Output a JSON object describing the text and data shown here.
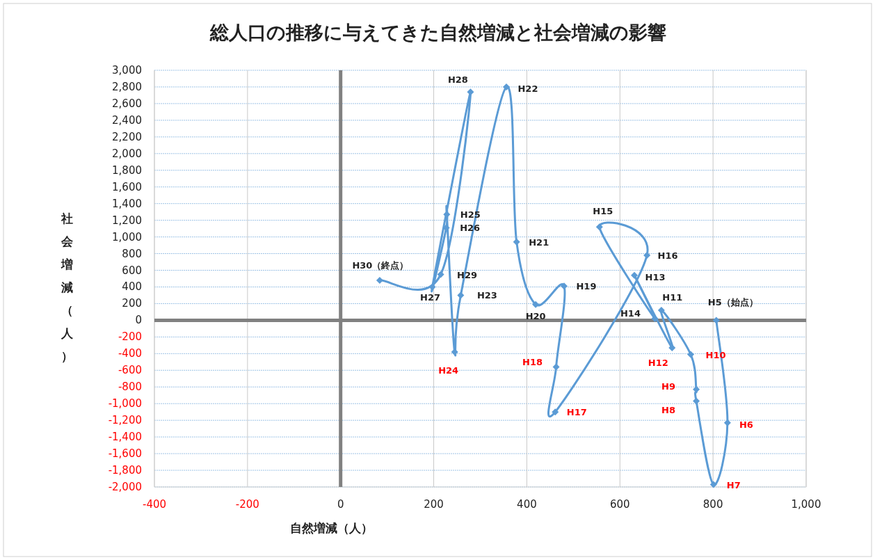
{
  "chart_data": {
    "type": "line",
    "title": "総人口の推移に与えてきた自然増減と社会増減の影響",
    "xlabel": "自然増減（人）",
    "ylabel": "社会増減（人）",
    "line_style": "solid",
    "marker": "diamond",
    "grid": true,
    "xlim": [
      -400,
      1000
    ],
    "ylim": [
      -2000,
      3000
    ],
    "xticks": [
      -400,
      -200,
      0,
      200,
      400,
      600,
      800,
      {
        "value": 1000,
        "label": "1,000"
      }
    ],
    "yticks": [
      {
        "value": -2000,
        "label": "-2,000"
      },
      {
        "value": -1800,
        "label": "-1,800"
      },
      {
        "value": -1600,
        "label": "-1,600"
      },
      {
        "value": -1400,
        "label": "-1,400"
      },
      {
        "value": -1200,
        "label": "-1,200"
      },
      {
        "value": -1000,
        "label": "-1,000"
      },
      -800,
      -600,
      -400,
      -200,
      0,
      200,
      400,
      600,
      800,
      {
        "value": 1000,
        "label": "1,000"
      },
      {
        "value": 1200,
        "label": "1,200"
      },
      {
        "value": 1400,
        "label": "1,400"
      },
      {
        "value": 1600,
        "label": "1,600"
      },
      {
        "value": 1800,
        "label": "1,800"
      },
      {
        "value": 2000,
        "label": "2,000"
      },
      {
        "value": 2200,
        "label": "2,200"
      },
      {
        "value": 2400,
        "label": "2,400"
      },
      {
        "value": 2600,
        "label": "2,600"
      },
      {
        "value": 2800,
        "label": "2,800"
      },
      {
        "value": 3000,
        "label": "3,000"
      }
    ],
    "series": [
      {
        "color": "#5b9bd5",
        "x": [
          807,
          831,
          801,
          764,
          764,
          752,
          689,
          712,
          631,
          675,
          556,
          658,
          461,
          463,
          480,
          419,
          378,
          356,
          258,
          245,
          228,
          227,
          197,
          279,
          215,
          84
        ],
        "values": [
          0,
          -1230,
          -1970,
          -970,
          -830,
          -410,
          120,
          -330,
          540,
          20,
          1120,
          780,
          -1100,
          -560,
          410,
          190,
          940,
          2800,
          300,
          -380,
          1270,
          1110,
          400,
          2740,
          550,
          480
        ]
      }
    ],
    "annotations": [
      {
        "text": "H5（始点）",
        "x": 807,
        "y": 0
      },
      {
        "text": "H6",
        "x": 831,
        "y": -1230
      },
      {
        "text": "H7",
        "x": 801,
        "y": -1970
      },
      {
        "text": "H8",
        "x": 764,
        "y": -970
      },
      {
        "text": "H9",
        "x": 764,
        "y": -830
      },
      {
        "text": "H10",
        "x": 752,
        "y": -410
      },
      {
        "text": "H11",
        "x": 689,
        "y": 120
      },
      {
        "text": "H12",
        "x": 712,
        "y": -330
      },
      {
        "text": "H13",
        "x": 631,
        "y": 540
      },
      {
        "text": "H14",
        "x": 675,
        "y": 20
      },
      {
        "text": "H15",
        "x": 556,
        "y": 1120
      },
      {
        "text": "H16",
        "x": 658,
        "y": 780
      },
      {
        "text": "H17",
        "x": 461,
        "y": -1100
      },
      {
        "text": "H18",
        "x": 463,
        "y": -560
      },
      {
        "text": "H19",
        "x": 480,
        "y": 410
      },
      {
        "text": "H20",
        "x": 419,
        "y": 190
      },
      {
        "text": "H21",
        "x": 378,
        "y": 940
      },
      {
        "text": "H22",
        "x": 356,
        "y": 2800
      },
      {
        "text": "H23",
        "x": 258,
        "y": 300
      },
      {
        "text": "H24",
        "x": 245,
        "y": -380
      },
      {
        "text": "H25",
        "x": 228,
        "y": 1270
      },
      {
        "text": "H26",
        "x": 227,
        "y": 1110
      },
      {
        "text": "H27",
        "x": 197,
        "y": 400
      },
      {
        "text": "H28",
        "x": 279,
        "y": 2740
      },
      {
        "text": "H29",
        "x": 215,
        "y": 550
      },
      {
        "text": "H30（終点）",
        "x": 84,
        "y": 480
      }
    ]
  }
}
